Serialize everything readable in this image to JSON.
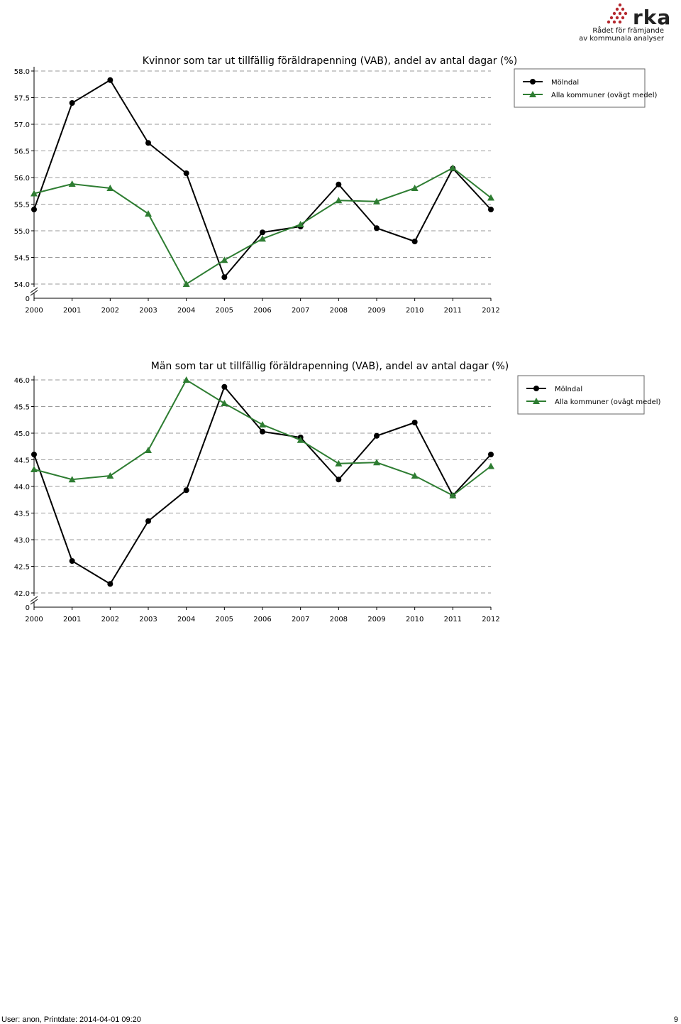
{
  "logo": {
    "brand": "rka",
    "tagline_line1": "Rådet för främjande",
    "tagline_line2": "av kommunala analyser",
    "colors": {
      "dots": "#b5282e",
      "text": "#222222"
    }
  },
  "chart_data": [
    {
      "type": "line",
      "title": "Kvinnor som tar ut tillfällig föräldrapenning (VAB), andel av antal dagar (%)",
      "xlabel": "",
      "ylabel": "",
      "categories": [
        "2000",
        "2001",
        "2002",
        "2003",
        "2004",
        "2005",
        "2006",
        "2007",
        "2008",
        "2009",
        "2010",
        "2011",
        "2012"
      ],
      "ylim": [
        54.0,
        58.0
      ],
      "yticks": [
        "58.0",
        "57.5",
        "57.0",
        "56.5",
        "56.0",
        "55.5",
        "55.0",
        "54.5",
        "54.0"
      ],
      "axis_break_label": "0",
      "grid": "horizontal dashed",
      "legend_position": "top-right",
      "series": [
        {
          "name": "Mölndal",
          "marker": "circle",
          "color": "#000000",
          "values": [
            55.4,
            57.4,
            57.83,
            56.65,
            56.08,
            54.13,
            54.97,
            55.08,
            55.87,
            55.05,
            54.8,
            56.17,
            55.4
          ]
        },
        {
          "name": "Alla kommuner (ovägt medel)",
          "marker": "triangle",
          "color": "#2e7d32",
          "values": [
            55.7,
            55.88,
            55.8,
            55.32,
            54.0,
            54.45,
            54.85,
            55.12,
            55.57,
            55.55,
            55.8,
            56.18,
            55.62
          ]
        }
      ]
    },
    {
      "type": "line",
      "title": "Män som tar ut tillfällig föräldrapenning (VAB), andel av antal dagar (%)",
      "xlabel": "",
      "ylabel": "",
      "categories": [
        "2000",
        "2001",
        "2002",
        "2003",
        "2004",
        "2005",
        "2006",
        "2007",
        "2008",
        "2009",
        "2010",
        "2011",
        "2012"
      ],
      "ylim": [
        42.0,
        46.0
      ],
      "yticks": [
        "46.0",
        "45.5",
        "45.0",
        "44.5",
        "44.0",
        "43.5",
        "43.0",
        "42.5",
        "42.0"
      ],
      "axis_break_label": "0",
      "grid": "horizontal dashed",
      "legend_position": "top-right",
      "series": [
        {
          "name": "Mölndal",
          "marker": "circle",
          "color": "#000000",
          "values": [
            44.6,
            42.6,
            42.17,
            43.35,
            43.93,
            45.87,
            45.03,
            44.92,
            44.13,
            44.95,
            45.2,
            43.83,
            44.6
          ]
        },
        {
          "name": "Alla kommuner (ovägt medel)",
          "marker": "triangle",
          "color": "#2e7d32",
          "values": [
            44.32,
            44.13,
            44.2,
            44.68,
            46.0,
            45.56,
            45.16,
            44.87,
            44.43,
            44.45,
            44.2,
            43.83,
            44.38
          ]
        }
      ]
    }
  ],
  "footer": {
    "user_line": "User: anon, Printdate: 2014-04-01 09:20",
    "page_number": "9"
  }
}
